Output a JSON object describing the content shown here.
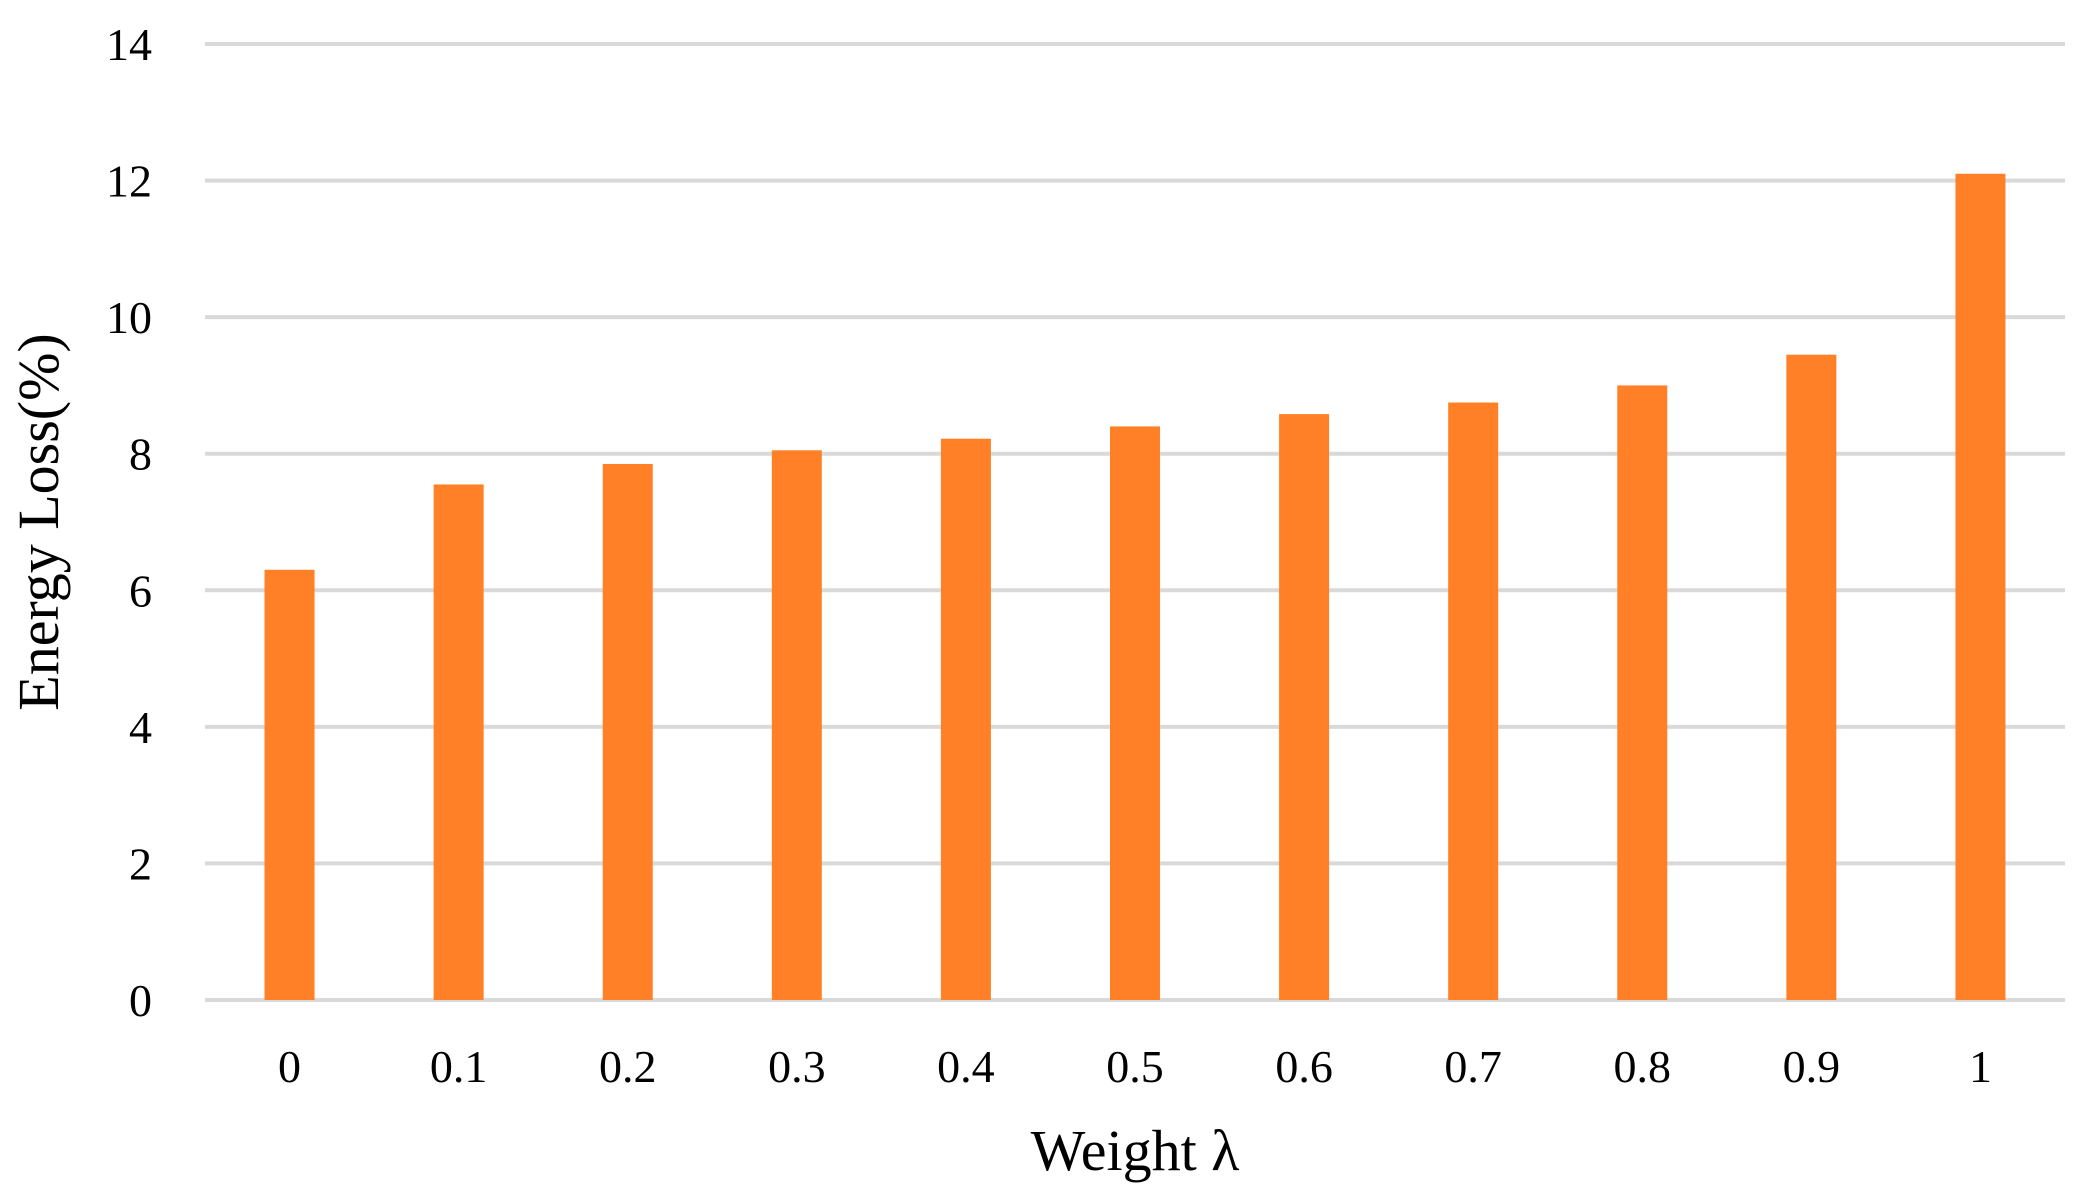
{
  "chart_data": {
    "type": "bar",
    "categories": [
      "0",
      "0.1",
      "0.2",
      "0.3",
      "0.4",
      "0.5",
      "0.6",
      "0.7",
      "0.8",
      "0.9",
      "1"
    ],
    "values": [
      6.3,
      7.55,
      7.85,
      8.05,
      8.22,
      8.4,
      8.58,
      8.75,
      9.0,
      9.45,
      12.1
    ],
    "title": "",
    "xlabel": "Weight λ",
    "ylabel": "Energy Loss(%)",
    "ylim": [
      0,
      14
    ],
    "yticks": [
      "0",
      "2",
      "4",
      "6",
      "8",
      "10",
      "12",
      "14"
    ],
    "grid": "horizontal",
    "bar_color": "#FF8026",
    "grid_color": "#D9D9D9"
  }
}
